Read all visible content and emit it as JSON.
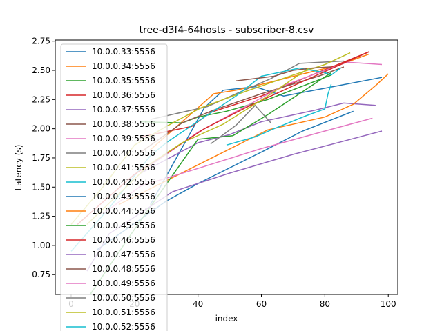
{
  "chart_data": {
    "type": "line",
    "title": "tree-d3f4-64hosts - subscriber-8.csv",
    "xlabel": "index",
    "ylabel": "Latency (s)",
    "xlim": [
      -5,
      103
    ],
    "ylim": [
      0.58,
      2.76
    ],
    "xticks": [
      0,
      20,
      40,
      60,
      80,
      100
    ],
    "yticks": [
      0.75,
      1.0,
      1.25,
      1.5,
      1.75,
      2.0,
      2.25,
      2.5,
      2.75
    ],
    "xtick_labels": [
      "0",
      "20",
      "40",
      "60",
      "80",
      "100"
    ],
    "ytick_labels": [
      "0.75",
      "1.00",
      "1.25",
      "1.50",
      "1.75",
      "2.00",
      "2.25",
      "2.50",
      "2.75"
    ],
    "grid": false,
    "legend_position": "upper-left",
    "series": [
      {
        "name": "10.0.0.33:5556",
        "color": "#1f77b4",
        "x": [
          25,
          42,
          48,
          58,
          67,
          98
        ],
        "y": [
          1.35,
          2.18,
          2.33,
          2.36,
          2.28,
          2.44
        ]
      },
      {
        "name": "10.0.0.34:5556",
        "color": "#ff7f0e",
        "x": [
          25,
          45,
          52,
          60,
          85,
          94
        ],
        "y": [
          1.82,
          2.3,
          2.33,
          2.38,
          2.55,
          2.64
        ]
      },
      {
        "name": "10.0.0.35:5556",
        "color": "#2ca02c",
        "x": [
          22,
          35,
          40,
          49,
          62,
          82
        ],
        "y": [
          2.06,
          2.05,
          2.1,
          2.15,
          2.25,
          2.46
        ]
      },
      {
        "name": "10.0.0.36:5556",
        "color": "#d62728",
        "x": [
          22,
          38,
          44,
          60,
          75,
          94
        ],
        "y": [
          1.93,
          2.02,
          2.14,
          2.28,
          2.45,
          2.66
        ]
      },
      {
        "name": "10.0.0.37:5556",
        "color": "#9467bd",
        "x": [
          22,
          40,
          50,
          60,
          77,
          86,
          96
        ],
        "y": [
          1.62,
          1.88,
          1.95,
          2.06,
          2.16,
          2.22,
          2.2
        ]
      },
      {
        "name": "10.0.0.38:5556",
        "color": "#8c564b",
        "x": [
          22,
          35,
          45,
          60,
          78,
          86
        ],
        "y": [
          1.8,
          2.05,
          2.16,
          2.3,
          2.45,
          2.53
        ]
      },
      {
        "name": "10.0.0.39:5556",
        "color": "#e377c2",
        "x": [
          22,
          40,
          57,
          67,
          75,
          87,
          98
        ],
        "y": [
          1.63,
          1.97,
          2.22,
          2.37,
          2.45,
          2.57,
          2.55
        ]
      },
      {
        "name": "10.0.0.40:5556",
        "color": "#7f7f7f",
        "x": [
          25,
          43,
          52,
          63,
          72,
          86
        ],
        "y": [
          2.08,
          2.19,
          2.3,
          2.43,
          2.56,
          2.58
        ]
      },
      {
        "name": "10.0.0.41:5556",
        "color": "#bcbd22",
        "x": [
          0,
          10,
          20,
          30,
          41,
          55,
          70,
          80,
          88
        ],
        "y": [
          1.18,
          1.5,
          1.86,
          2.02,
          2.18,
          2.32,
          2.46,
          2.55,
          2.65
        ]
      },
      {
        "name": "10.0.0.42:5556",
        "color": "#17becf",
        "x": [
          0,
          12,
          25,
          30,
          42,
          52,
          60,
          72,
          80,
          82,
          85
        ],
        "y": [
          0.95,
          1.32,
          1.77,
          1.88,
          2.1,
          2.28,
          2.45,
          2.52,
          2.48,
          2.46,
          2.52
        ]
      },
      {
        "name": "10.0.0.43:5556",
        "color": "#1f77b4",
        "x": [
          8,
          30,
          40,
          60,
          73,
          89
        ],
        "y": [
          0.96,
          1.38,
          1.53,
          1.8,
          1.98,
          2.15
        ]
      },
      {
        "name": "10.0.0.44:5556",
        "color": "#ff7f0e",
        "x": [
          15,
          62,
          80,
          89,
          96,
          100
        ],
        "y": [
          1.35,
          1.99,
          2.1,
          2.21,
          2.37,
          2.47
        ]
      },
      {
        "name": "10.0.0.45:5556",
        "color": "#2ca02c",
        "x": [
          6,
          19,
          40,
          51,
          62,
          82
        ],
        "y": [
          0.58,
          1.1,
          1.91,
          1.94,
          2.12,
          2.48
        ]
      },
      {
        "name": "10.0.0.46:5556",
        "color": "#d62728",
        "x": [
          2,
          20,
          42,
          55,
          71,
          94
        ],
        "y": [
          1.18,
          1.61,
          2.0,
          2.18,
          2.38,
          2.66
        ]
      },
      {
        "name": "10.0.0.47:5556",
        "color": "#9467bd",
        "x": [
          5,
          12,
          32,
          50,
          70,
          98
        ],
        "y": [
          0.78,
          1.1,
          1.46,
          1.62,
          1.78,
          1.98
        ]
      },
      {
        "name": "10.0.0.48:5556",
        "color": "#8c564b",
        "x": [
          52,
          58,
          64,
          70,
          76,
          82
        ],
        "y": [
          2.41,
          2.43,
          2.45,
          2.5,
          2.52,
          2.53
        ]
      },
      {
        "name": "10.0.0.49:5556",
        "color": "#e377c2",
        "x": [
          10,
          22,
          40,
          60,
          80,
          95
        ],
        "y": [
          1.27,
          1.51,
          1.66,
          1.83,
          1.98,
          2.09
        ]
      },
      {
        "name": "10.0.0.50:5556",
        "color": "#7f7f7f",
        "x": [
          44,
          52,
          58,
          63
        ],
        "y": [
          1.87,
          2.03,
          2.2,
          2.05
        ]
      },
      {
        "name": "10.0.0.51:5556",
        "color": "#bcbd22",
        "x": [
          5,
          15,
          25,
          35,
          48,
          62,
          75
        ],
        "y": [
          1.18,
          1.44,
          1.7,
          1.88,
          2.04,
          2.28,
          2.52
        ]
      },
      {
        "name": "10.0.0.52:5556",
        "color": "#17becf",
        "x": [
          49,
          58,
          64,
          74,
          80,
          81,
          82
        ],
        "y": [
          1.86,
          1.93,
          2.0,
          2.11,
          2.17,
          2.3,
          2.38
        ]
      }
    ]
  }
}
